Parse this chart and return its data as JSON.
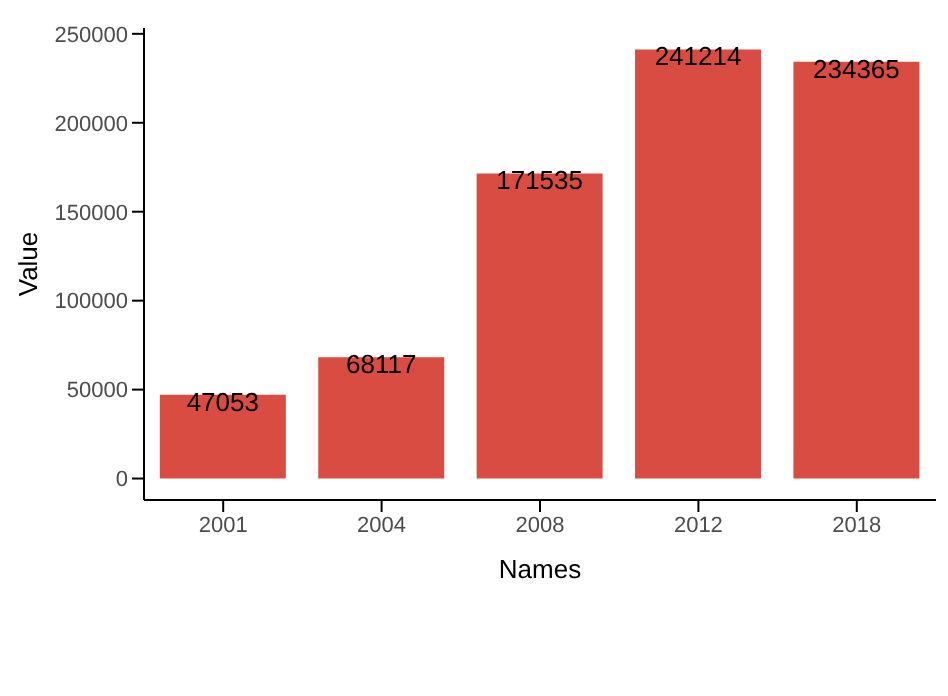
{
  "chart_data": {
    "type": "bar",
    "xlabel": "Names",
    "ylabel": "Value",
    "categories": [
      "2001",
      "2004",
      "2008",
      "2012",
      "2018"
    ],
    "values": [
      47053,
      68117,
      171535,
      241214,
      234365
    ],
    "color": "#d94c41",
    "ylim": [
      -12061,
      253275
    ],
    "yticks": [
      0,
      50000,
      100000,
      150000,
      200000,
      250000
    ],
    "grid": false,
    "data_labels": true
  }
}
